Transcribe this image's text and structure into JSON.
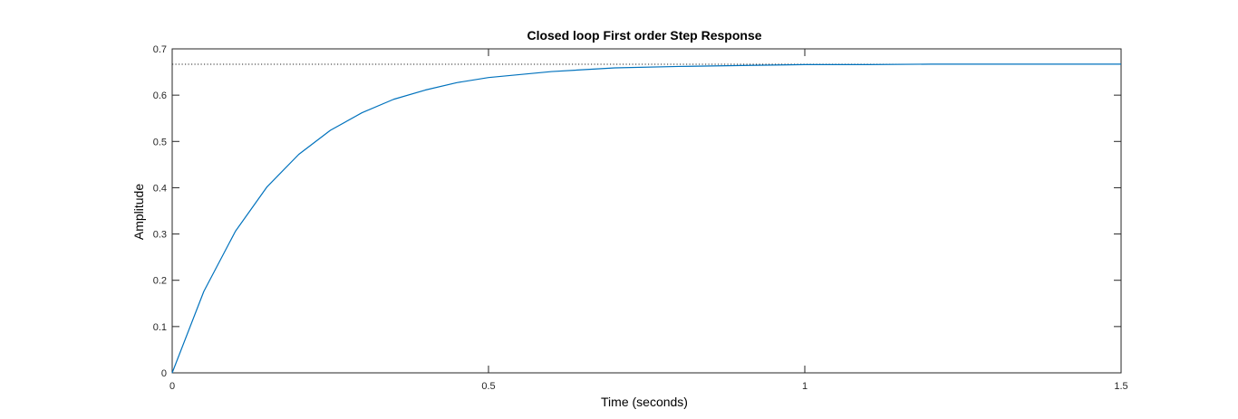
{
  "chart_data": {
    "type": "line",
    "title": "Closed loop First order Step Response",
    "xlabel": "Time (seconds)",
    "ylabel": "Amplitude",
    "xlim": [
      0,
      1.5
    ],
    "ylim": [
      0,
      0.7
    ],
    "xticks": [
      0,
      0.5,
      1,
      1.5
    ],
    "xtick_labels": [
      "0",
      "0.5",
      "1",
      "1.5"
    ],
    "yticks": [
      0,
      0.1,
      0.2,
      0.3,
      0.4,
      0.5,
      0.6,
      0.7
    ],
    "ytick_labels": [
      "0",
      "0.1",
      "0.2",
      "0.3",
      "0.4",
      "0.5",
      "0.6",
      "0.7"
    ],
    "grid": false,
    "steady_state_value": 0.6667,
    "series": [
      {
        "color": "#0072BD",
        "x": [
          0,
          0.05,
          0.1,
          0.15,
          0.2,
          0.25,
          0.3,
          0.35,
          0.4,
          0.45,
          0.5,
          0.6,
          0.7,
          0.8,
          0.9,
          1.0,
          1.1,
          1.2,
          1.3,
          1.4,
          1.5
        ],
        "y": [
          0,
          0.176,
          0.306,
          0.402,
          0.472,
          0.524,
          0.562,
          0.591,
          0.611,
          0.627,
          0.638,
          0.651,
          0.659,
          0.662,
          0.664,
          0.666,
          0.666,
          0.667,
          0.667,
          0.667,
          0.667
        ]
      }
    ],
    "reference_line": {
      "color": "#262626",
      "style": "dotted"
    },
    "axes_color": "#262626"
  }
}
